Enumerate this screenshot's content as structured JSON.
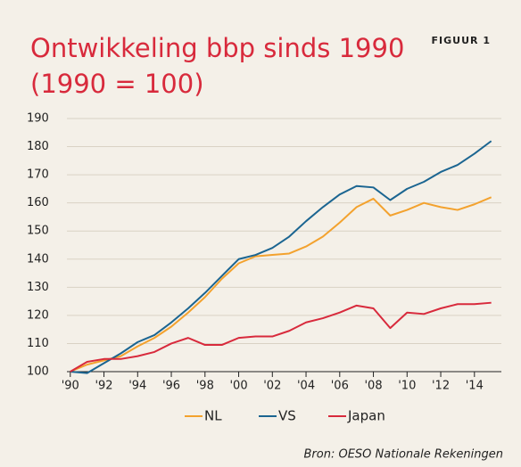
{
  "chart_data": {
    "type": "line",
    "title": "Ontwikkeling bbp sinds 1990",
    "subtitle": "(1990 = 100)",
    "figure_label": "FIGUUR 1",
    "source": "Bron: OESO Nationale Rekeningen",
    "x": [
      1990,
      1991,
      1992,
      1993,
      1994,
      1995,
      1996,
      1997,
      1998,
      1999,
      2000,
      2001,
      2002,
      2003,
      2004,
      2005,
      2006,
      2007,
      2008,
      2009,
      2010,
      2011,
      2012,
      2013,
      2014,
      2015
    ],
    "series": [
      {
        "name": "NL",
        "color": "#f3a22e",
        "values": [
          100,
          102.5,
          104,
          105.5,
          109,
          112,
          116,
          121,
          126.5,
          133,
          138.5,
          141,
          141.5,
          142,
          144.5,
          148,
          153,
          158.5,
          161.5,
          155.5,
          157.5,
          160,
          158.5,
          157.5,
          159.5,
          162
        ]
      },
      {
        "name": "VS",
        "color": "#1b6591",
        "values": [
          100,
          99.5,
          103,
          106.5,
          110.5,
          113,
          117.5,
          122.5,
          128,
          134,
          140,
          141.5,
          144,
          148,
          153.5,
          158.5,
          163,
          166,
          165.5,
          161,
          165,
          167.5,
          171,
          173.5,
          177.5,
          182
        ]
      },
      {
        "name": "Japan",
        "color": "#d82a3c",
        "values": [
          100,
          103.5,
          104.5,
          104.5,
          105.5,
          107,
          110,
          112,
          109.5,
          109.5,
          112,
          112.5,
          112.5,
          114.5,
          117.5,
          119,
          121,
          123.5,
          122.5,
          115.5,
          121,
          120.5,
          122.5,
          124,
          124,
          124.5
        ]
      }
    ],
    "xlim": [
      1989.8,
      2015.6
    ],
    "xticks": [
      {
        "value": 1990,
        "label": "'90"
      },
      {
        "value": 1992,
        "label": "'92"
      },
      {
        "value": 1994,
        "label": "'94"
      },
      {
        "value": 1996,
        "label": "'96"
      },
      {
        "value": 1998,
        "label": "'98"
      },
      {
        "value": 2000,
        "label": "'00"
      },
      {
        "value": 2002,
        "label": "'02"
      },
      {
        "value": 2004,
        "label": "'04"
      },
      {
        "value": 2006,
        "label": "'06"
      },
      {
        "value": 2008,
        "label": "'08"
      },
      {
        "value": 2010,
        "label": "'10"
      },
      {
        "value": 2012,
        "label": "'12"
      },
      {
        "value": 2014,
        "label": "'14"
      }
    ],
    "ylim": [
      100,
      190
    ],
    "yticks": [
      100,
      110,
      120,
      130,
      140,
      150,
      160,
      170,
      180,
      190
    ],
    "grid": true
  }
}
